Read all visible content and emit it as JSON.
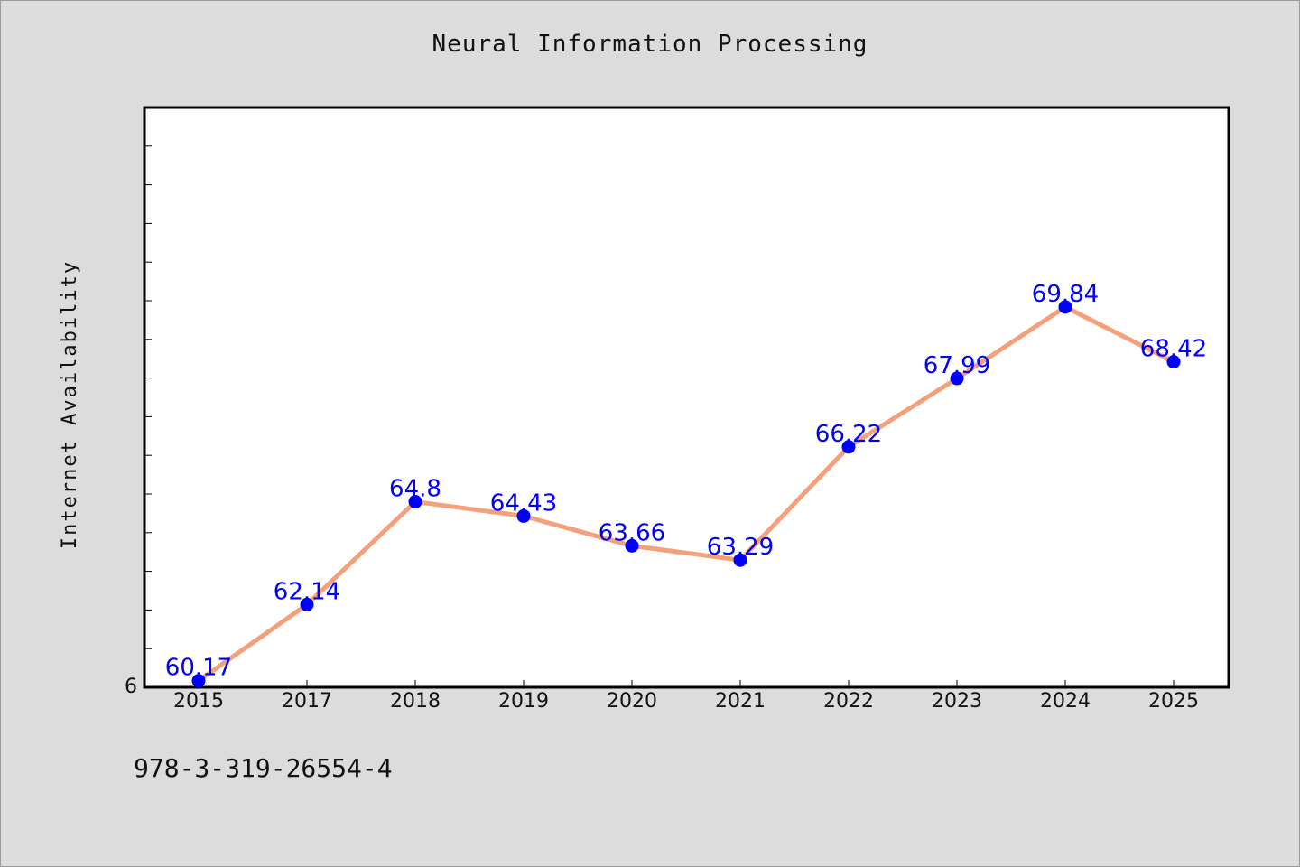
{
  "header": {
    "title": "Neural Information Processing"
  },
  "footer": {
    "identifier": "978-3-319-26554-4"
  },
  "chart_data": {
    "type": "line",
    "title": "Neural Information Processing",
    "xlabel": "",
    "ylabel": "Internet Availability",
    "categories": [
      "2015",
      "2017",
      "2018",
      "2019",
      "2020",
      "2021",
      "2022",
      "2023",
      "2024",
      "2025"
    ],
    "series": [
      {
        "values": [
          60.17,
          62.14,
          64.8,
          64.43,
          63.66,
          63.29,
          66.22,
          67.99,
          69.84,
          68.42
        ],
        "labels": [
          "60.17",
          "62.14",
          "64.8",
          "64.43",
          "63.66",
          "63.29",
          "66.22",
          "67.99",
          "69.84",
          "68.42"
        ]
      }
    ],
    "ylim": [
      60,
      75
    ],
    "y_tick_labels": [
      "6"
    ],
    "grid": false,
    "legend": "none",
    "colors": {
      "line": "#f4a07a",
      "marker": "#0000ff",
      "data_label": "#0000ff",
      "plot_bg": "#ffffff",
      "page_bg": "#dcdcdc"
    }
  }
}
